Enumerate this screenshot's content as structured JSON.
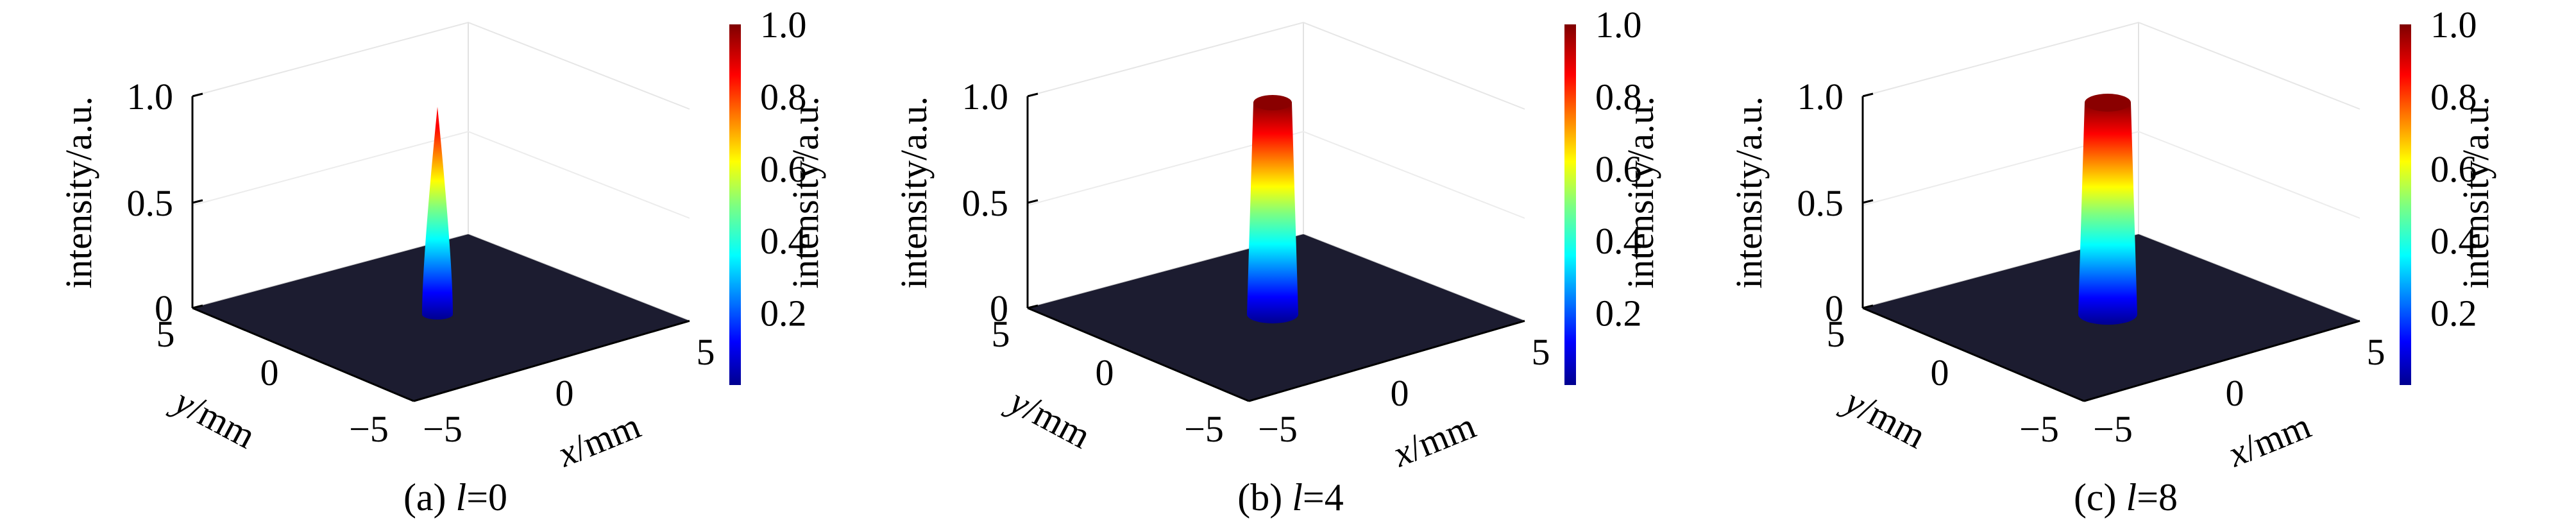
{
  "figure": {
    "panels": [
      {
        "caption_prefix": "(a) ",
        "caption_var": "l",
        "caption_suffix": "=0"
      },
      {
        "caption_prefix": "(b) ",
        "caption_var": "l",
        "caption_suffix": "=4"
      },
      {
        "caption_prefix": "(c) ",
        "caption_var": "l",
        "caption_suffix": "=8"
      }
    ]
  },
  "chart_data": [
    {
      "type": "surface3d",
      "panel": "(a) l=0",
      "x_label": {
        "var": "x",
        "unit": "/mm"
      },
      "y_label": {
        "var": "y",
        "unit": "/mm"
      },
      "z_label": "intensity/a.u.",
      "x_ticks": [
        "−5",
        "0",
        "5"
      ],
      "y_ticks": [
        "5",
        "0",
        "−5"
      ],
      "z_ticks": [
        "0",
        "0.5",
        "1.0"
      ],
      "xlim": [
        -5,
        5
      ],
      "ylim": [
        -5,
        5
      ],
      "zlim": [
        0,
        1.0
      ],
      "l": 0,
      "peak_intensity": 0.95,
      "profile": "narrow Gaussian peak at origin",
      "colorbar": {
        "label": "intensity/a.u.",
        "ticks": [
          "0.2",
          "0.4",
          "0.6",
          "0.8",
          "1.0"
        ],
        "range": [
          0,
          1.0
        ],
        "colormap": "jet"
      }
    },
    {
      "type": "surface3d",
      "panel": "(b) l=4",
      "x_label": {
        "var": "x",
        "unit": "/mm"
      },
      "y_label": {
        "var": "y",
        "unit": "/mm"
      },
      "z_label": "intensity/a.u.",
      "x_ticks": [
        "−5",
        "0",
        "5"
      ],
      "y_ticks": [
        "5",
        "0",
        "−5"
      ],
      "z_ticks": [
        "0",
        "0.5",
        "1.0"
      ],
      "xlim": [
        -5,
        5
      ],
      "ylim": [
        -5,
        5
      ],
      "zlim": [
        0,
        1.0
      ],
      "l": 4,
      "peak_intensity": 1.0,
      "profile": "flat-top beam",
      "colorbar": {
        "label": "intensity/a.u.",
        "ticks": [
          "0.2",
          "0.4",
          "0.6",
          "0.8",
          "1.0"
        ],
        "range": [
          0,
          1.0
        ],
        "colormap": "jet"
      }
    },
    {
      "type": "surface3d",
      "panel": "(c) l=8",
      "x_label": {
        "var": "x",
        "unit": "/mm"
      },
      "y_label": {
        "var": "y",
        "unit": "/mm"
      },
      "z_label": "intensity/a.u.",
      "x_ticks": [
        "−5",
        "0",
        "5"
      ],
      "y_ticks": [
        "5",
        "0",
        "−5"
      ],
      "z_ticks": [
        "0",
        "0.5",
        "1.0"
      ],
      "xlim": [
        -5,
        5
      ],
      "ylim": [
        -5,
        5
      ],
      "zlim": [
        0,
        1.0
      ],
      "l": 8,
      "peak_intensity": 1.0,
      "profile": "wider flat-top beam",
      "colorbar": {
        "label": "intensity/a.u.",
        "ticks": [
          "0.2",
          "0.4",
          "0.6",
          "0.8",
          "1.0"
        ],
        "range": [
          0,
          1.0
        ],
        "colormap": "jet"
      }
    }
  ]
}
